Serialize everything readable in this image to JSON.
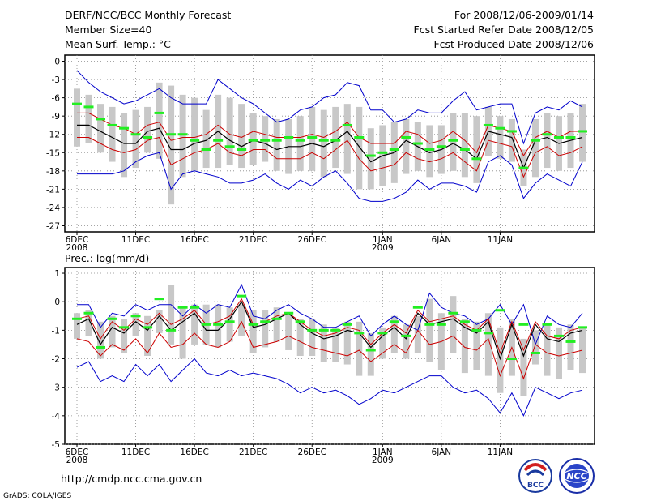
{
  "header": {
    "title": "DERF/NCC/BCC Monthly Forecast",
    "member_size": "Member Size=40",
    "variable": "Mean Surf. Temp.: °C",
    "period": "For 2008/12/06-2009/01/14",
    "start_date": "Fcst Started Refer Date 2008/12/05",
    "produced_date": "Fcst Produced Date 2008/12/06"
  },
  "footer": {
    "url": "http://cmdp.ncc.cma.gov.cn",
    "grads_credit": "GrADS: COLA/IGES",
    "logo_bcc_text": "BCC",
    "logo_ncc_text": "NCC"
  },
  "colors": {
    "envelope": "#0000cc",
    "spread": "#cc0000",
    "mean": "#000000",
    "box": "#c8c8c8",
    "marker": "#22ee22",
    "grid": "#888888"
  },
  "chart_data": [
    {
      "type": "line",
      "title": "",
      "ylabel": "Mean Surf. Temp.: °C",
      "ylim": [
        -28,
        1
      ],
      "yticks": [
        0,
        -3,
        -6,
        -9,
        -12,
        -15,
        -18,
        -21,
        -24,
        -27
      ],
      "xtick_index": [
        0,
        5,
        10,
        15,
        20,
        26,
        31,
        36
      ],
      "xtick_labels": [
        "6DEC",
        "11DEC",
        "16DEC",
        "21DEC",
        "26DEC",
        "1JAN",
        "6JAN",
        "11JAN"
      ],
      "year_labels": [
        {
          "index": 0,
          "label": "2008"
        },
        {
          "index": 26,
          "label": "2009"
        }
      ],
      "grid": true,
      "series": [
        {
          "name": "max",
          "values": [
            -1.5,
            -3.5,
            -5,
            -6,
            -7,
            -6.5,
            -5.5,
            -4.5,
            -6,
            -7,
            -7,
            -7,
            -3,
            -4.5,
            -6,
            -7,
            -8.5,
            -10,
            -9.5,
            -8,
            -7.5,
            -6,
            -5.5,
            -3.5,
            -4,
            -8,
            -8,
            -10,
            -9.5,
            -8,
            -8.5,
            -8.5,
            -6.5,
            -5,
            -8,
            -7.5,
            -7,
            -7,
            -13.5,
            -8.5,
            -7.5,
            -8,
            -6.5,
            -7.5
          ]
        },
        {
          "name": "upper",
          "values": [
            -8.5,
            -8.5,
            -9.5,
            -10.5,
            -11,
            -12,
            -10.5,
            -10,
            -13,
            -12.5,
            -12.5,
            -12,
            -10.5,
            -12,
            -12.5,
            -11.5,
            -12,
            -12.5,
            -12.5,
            -12.5,
            -12,
            -12.5,
            -11.5,
            -10,
            -12.5,
            -13.5,
            -13.5,
            -13.5,
            -11.5,
            -12,
            -13.5,
            -13,
            -11.5,
            -13,
            -15,
            -10.5,
            -11,
            -11.5,
            -15.5,
            -12.5,
            -11.5,
            -12.5,
            -11.5,
            -11.5
          ]
        },
        {
          "name": "mean",
          "values": [
            -10.5,
            -10.5,
            -11.5,
            -12.5,
            -13.5,
            -13.5,
            -11.5,
            -11,
            -14.5,
            -14.5,
            -13.5,
            -13,
            -11.5,
            -13,
            -14,
            -13,
            -13.5,
            -14.5,
            -14,
            -14,
            -13.5,
            -14,
            -13,
            -11.5,
            -14,
            -16.5,
            -15.5,
            -15,
            -13,
            -14,
            -15,
            -14.5,
            -13.5,
            -14.5,
            -16,
            -11.5,
            -12,
            -12.5,
            -17.5,
            -13,
            -12.5,
            -13.5,
            -13,
            -12.5
          ]
        },
        {
          "name": "lower",
          "values": [
            -12.5,
            -12.5,
            -13.5,
            -14.5,
            -15,
            -14.5,
            -13,
            -12.5,
            -17,
            -16,
            -15,
            -14.5,
            -13.5,
            -15,
            -15.5,
            -14.5,
            -14.5,
            -16,
            -16,
            -16,
            -15,
            -16,
            -14.5,
            -13,
            -16,
            -18,
            -17.5,
            -17,
            -15,
            -16,
            -16.5,
            -16,
            -15,
            -16.5,
            -18,
            -13,
            -13.5,
            -14,
            -19,
            -15,
            -14,
            -15.5,
            -15,
            -14
          ]
        },
        {
          "name": "min",
          "values": [
            -18.5,
            -18.5,
            -18.5,
            -18.5,
            -18,
            -16.5,
            -15.5,
            -15,
            -21,
            -18.5,
            -18,
            -18.5,
            -19,
            -20,
            -20,
            -19.5,
            -18.5,
            -20,
            -21,
            -19.5,
            -20.5,
            -19,
            -18,
            -20,
            -22.5,
            -23,
            -23,
            -22.5,
            -21.5,
            -19.5,
            -21,
            -20,
            -20,
            -20.5,
            -21.5,
            -16.5,
            -15.5,
            -17,
            -22.5,
            -20,
            -18.5,
            -19.5,
            -20.5,
            -16.5
          ]
        },
        {
          "name": "box_top",
          "values": [
            -4.5,
            -5.5,
            -7,
            -7.5,
            -8.5,
            -8,
            -7.5,
            -3.5,
            -4,
            -5.5,
            -6,
            -8,
            -5.5,
            -6,
            -7,
            -8.5,
            -9,
            -9.5,
            -9.5,
            -9,
            -7.5,
            -8,
            -7.5,
            -7,
            -7.5,
            -11,
            -10.5,
            -10,
            -9.5,
            -10,
            -10.5,
            -10.5,
            -8.5,
            -8.5,
            -9,
            -7.5,
            -9,
            -9.5,
            -14.5,
            -9.5,
            -8.5,
            -9,
            -8.5,
            -7
          ]
        },
        {
          "name": "box_bottom",
          "values": [
            -14,
            -13.5,
            -15,
            -16.5,
            -19,
            -17.5,
            -15,
            -16,
            -23.5,
            -19,
            -18,
            -17.5,
            -17.5,
            -17,
            -17.5,
            -17,
            -16.5,
            -18,
            -18.5,
            -18,
            -18,
            -19,
            -17.5,
            -18.5,
            -21,
            -21,
            -20.5,
            -20,
            -18.5,
            -18,
            -19,
            -18.5,
            -18,
            -19,
            -20,
            -15.5,
            -16,
            -16.5,
            -20.5,
            -19,
            -17.5,
            -18,
            -17.5,
            -16.5
          ]
        },
        {
          "name": "marker",
          "values": [
            -7,
            -7.5,
            -9.5,
            -10.5,
            -11,
            -12,
            -12.5,
            -8.5,
            -12,
            -12,
            -13,
            -14.5,
            -13,
            -14,
            -14.5,
            -13,
            -13,
            -13,
            -12.5,
            -13,
            -12.5,
            -13,
            -13,
            -10.5,
            -12.5,
            -15.5,
            -15,
            -14.5,
            -12.5,
            -13.5,
            -14.5,
            -14,
            -13,
            -14.5,
            -16,
            -10.5,
            -11,
            -11.5,
            -17.5,
            -13,
            -12,
            -12.5,
            -12.5,
            -11.5
          ]
        }
      ]
    },
    {
      "type": "line",
      "title": "",
      "ylabel": "Prec.: log(mm/d)",
      "ylim": [
        -5,
        1.2
      ],
      "yticks": [
        1,
        0,
        -1,
        -2,
        -3,
        -4,
        -5
      ],
      "xtick_index": [
        0,
        5,
        10,
        15,
        20,
        26,
        31,
        36
      ],
      "xtick_labels": [
        "6DEC",
        "11DEC",
        "16DEC",
        "21DEC",
        "26DEC",
        "1JAN",
        "6JAN",
        "11JAN"
      ],
      "year_labels": [
        {
          "index": 0,
          "label": "2008"
        },
        {
          "index": 26,
          "label": "2009"
        }
      ],
      "grid": true,
      "series": [
        {
          "name": "max",
          "values": [
            -0.1,
            -0.1,
            -0.9,
            -0.4,
            -0.5,
            -0.1,
            -0.3,
            -0.1,
            -0.1,
            -0.5,
            -0.1,
            -0.4,
            -0.1,
            -0.2,
            0.6,
            -0.5,
            -0.6,
            -0.3,
            -0.1,
            -0.4,
            -0.6,
            -0.9,
            -0.9,
            -0.7,
            -0.5,
            -1.2,
            -0.8,
            -0.5,
            -0.8,
            -1.0,
            0.3,
            -0.2,
            -0.4,
            -0.5,
            -0.8,
            -0.6,
            -0.1,
            -0.8,
            -0.1,
            -1.5,
            -0.5,
            -0.8,
            -0.9,
            -0.4
          ]
        },
        {
          "name": "upper",
          "values": [
            -0.6,
            -0.5,
            -1.3,
            -0.7,
            -1.0,
            -0.6,
            -0.8,
            -0.4,
            -0.8,
            -0.6,
            -0.3,
            -0.8,
            -0.7,
            -0.5,
            0.1,
            -0.8,
            -0.7,
            -0.5,
            -0.4,
            -0.7,
            -1.0,
            -1.2,
            -1.1,
            -0.9,
            -1.0,
            -1.5,
            -1.1,
            -0.8,
            -1.1,
            -0.3,
            -0.7,
            -0.6,
            -0.5,
            -0.8,
            -1.0,
            -0.6,
            -1.8,
            -0.7,
            -1.7,
            -0.7,
            -1.2,
            -1.3,
            -1.0,
            -0.9
          ]
        },
        {
          "name": "mean",
          "values": [
            -0.8,
            -0.6,
            -1.5,
            -0.9,
            -1.1,
            -0.7,
            -1.0,
            -0.5,
            -1.0,
            -0.7,
            -0.4,
            -1.0,
            -1.0,
            -0.6,
            0.0,
            -0.9,
            -0.8,
            -0.6,
            -0.4,
            -0.8,
            -1.1,
            -1.3,
            -1.2,
            -1.0,
            -1.1,
            -1.6,
            -1.2,
            -0.9,
            -1.3,
            -0.4,
            -0.8,
            -0.7,
            -0.6,
            -0.9,
            -1.1,
            -0.7,
            -2.0,
            -0.8,
            -1.9,
            -0.8,
            -1.3,
            -1.4,
            -1.1,
            -1.0
          ]
        },
        {
          "name": "lower",
          "values": [
            -1.3,
            -1.4,
            -1.9,
            -1.5,
            -1.7,
            -1.3,
            -1.8,
            -1.1,
            -1.6,
            -1.5,
            -1.1,
            -1.5,
            -1.6,
            -1.4,
            -0.7,
            -1.6,
            -1.5,
            -1.4,
            -1.2,
            -1.4,
            -1.6,
            -1.7,
            -1.8,
            -1.9,
            -1.7,
            -2.1,
            -1.8,
            -1.5,
            -1.8,
            -1.0,
            -1.5,
            -1.4,
            -1.2,
            -1.6,
            -1.7,
            -1.3,
            -2.6,
            -1.6,
            -2.7,
            -1.5,
            -1.8,
            -1.9,
            -1.8,
            -1.7
          ]
        },
        {
          "name": "min",
          "values": [
            -2.3,
            -2.1,
            -2.8,
            -2.6,
            -2.8,
            -2.2,
            -2.6,
            -2.2,
            -2.8,
            -2.4,
            -2.0,
            -2.5,
            -2.6,
            -2.4,
            -2.6,
            -2.5,
            -2.6,
            -2.7,
            -2.9,
            -3.2,
            -3.0,
            -3.2,
            -3.1,
            -3.3,
            -3.6,
            -3.4,
            -3.1,
            -3.2,
            -3.0,
            -2.8,
            -2.6,
            -2.6,
            -3.0,
            -3.2,
            -3.1,
            -3.4,
            -3.9,
            -3.2,
            -4.0,
            -3.0,
            -3.2,
            -3.4,
            -3.2,
            -3.1
          ]
        },
        {
          "name": "box_top",
          "values": [
            -0.4,
            -0.3,
            -0.7,
            -0.5,
            -0.6,
            -0.4,
            -0.5,
            -0.3,
            0.6,
            -0.2,
            -0.1,
            -0.1,
            -0.1,
            -0.2,
            -0.1,
            -0.3,
            -0.3,
            -0.2,
            -0.4,
            -0.6,
            -0.6,
            -0.8,
            -0.9,
            -0.7,
            -0.7,
            -1.1,
            -0.9,
            -0.5,
            -0.8,
            -0.5,
            0.1,
            -0.4,
            0.2,
            -0.6,
            -0.7,
            -0.4,
            -0.9,
            -0.6,
            -1.3,
            -1.0,
            -0.8,
            -0.9,
            -0.8,
            -0.9
          ]
        },
        {
          "name": "box_bottom",
          "values": [
            -1.3,
            -1.2,
            -2.0,
            -1.6,
            -1.8,
            -1.2,
            -1.9,
            -1.1,
            -1.5,
            -2.0,
            -1.5,
            -1.5,
            -1.6,
            -1.4,
            -1.2,
            -1.8,
            -1.6,
            -1.4,
            -1.7,
            -1.9,
            -1.9,
            -2.1,
            -2.1,
            -2.2,
            -2.6,
            -2.6,
            -2.0,
            -1.8,
            -2.0,
            -1.8,
            -2.1,
            -2.4,
            -1.8,
            -2.5,
            -2.4,
            -2.6,
            -3.2,
            -2.6,
            -3.3,
            -2.2,
            -2.6,
            -2.7,
            -2.4,
            -2.5
          ]
        },
        {
          "name": "marker",
          "values": [
            -0.6,
            -0.4,
            -1.6,
            -0.6,
            -0.9,
            -0.5,
            -0.9,
            0.1,
            -1.0,
            -0.2,
            -0.2,
            -0.8,
            -0.8,
            -0.7,
            0.2,
            -0.8,
            -0.7,
            -0.6,
            -0.4,
            -0.7,
            -1.0,
            -1.0,
            -1.0,
            -0.8,
            -1.1,
            -1.7,
            -1.1,
            -0.7,
            -1.2,
            -0.2,
            -0.8,
            -0.8,
            -0.4,
            -0.7,
            -1.0,
            -1.1,
            -0.3,
            -2.0,
            -0.8,
            -1.8,
            -0.8,
            -1.2,
            -1.4,
            -0.9
          ]
        }
      ]
    }
  ]
}
